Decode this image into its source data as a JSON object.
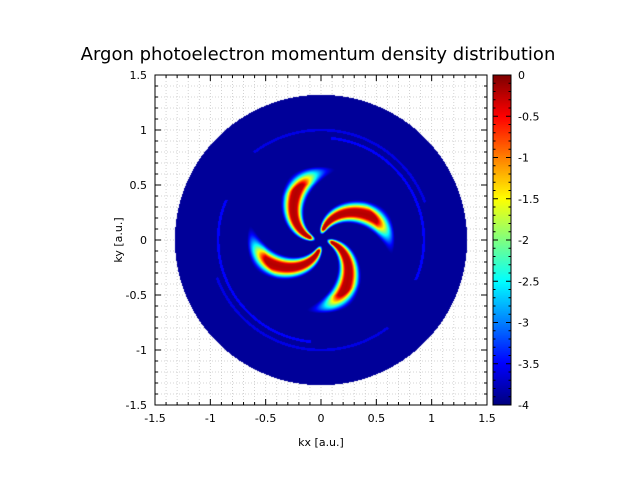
{
  "chart_data": {
    "type": "heatmap",
    "title": "Argon photoelectron momentum density distribution",
    "xlabel": "kx [a.u.]",
    "ylabel": "ky [a.u.]",
    "xlim": [
      -1.5,
      1.5
    ],
    "ylim": [
      -1.5,
      1.5
    ],
    "x_ticks": [
      "-1.5",
      "-1",
      "-0.5",
      "0",
      "0.5",
      "1",
      "1.5"
    ],
    "y_ticks": [
      "-1.5",
      "-1",
      "-0.5",
      "0",
      "0.5",
      "1",
      "1.5"
    ],
    "grid": true,
    "colorbar": {
      "range": [
        -4,
        0
      ],
      "ticks": [
        "0",
        "-0.5",
        "-1",
        "-1.5",
        "-2",
        "-2.5",
        "-3",
        "-3.5",
        "-4"
      ],
      "colormap": "jet",
      "position": "right"
    },
    "disk_radius": 1.32,
    "background_value": -3.9,
    "spiral": {
      "arms": 4,
      "inner_radius": 0.1,
      "outer_radius": 0.62,
      "peak_value": -0.2
    },
    "rings": [
      {
        "radius": 0.93,
        "value": -3.5
      },
      {
        "radius": 1.0,
        "value": -3.6
      }
    ]
  }
}
